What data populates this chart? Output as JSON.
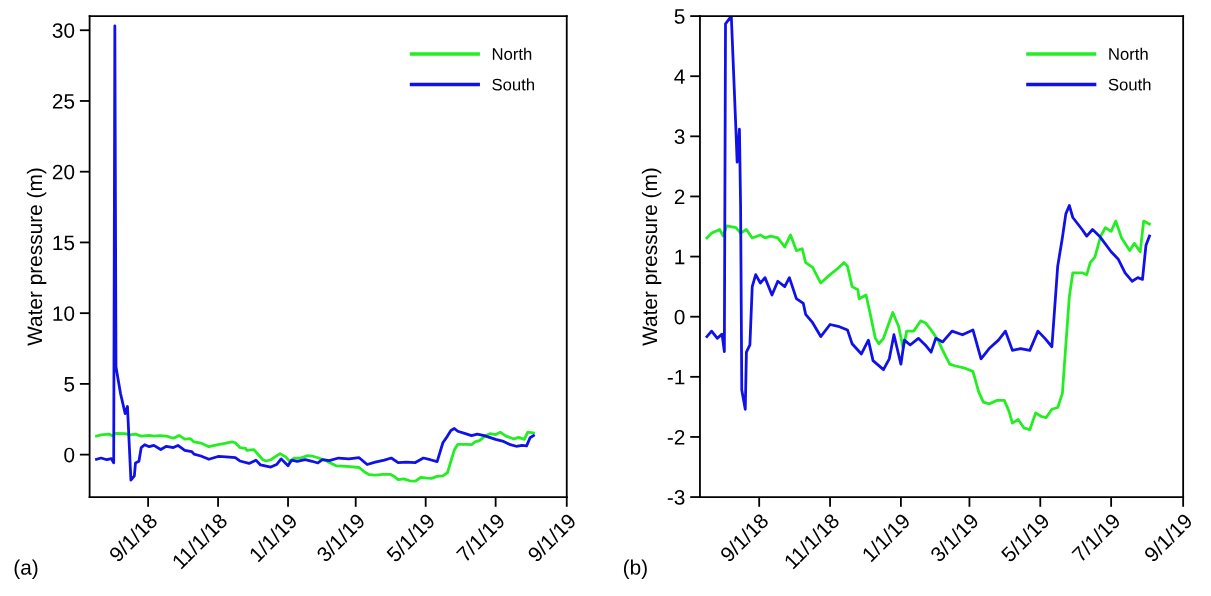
{
  "chart_data": [
    {
      "type": "line",
      "ylabel": "Water pressure (m)",
      "annotations": [
        "(a)"
      ],
      "legend": "top right",
      "xlim": [
        "2018-07-12",
        "2019-09-01"
      ],
      "xticks": [
        {
          "value": "2018-09-01",
          "label": "9/1/18"
        },
        {
          "value": "2018-11-01",
          "label": "11/1/18"
        },
        {
          "value": "2019-01-01",
          "label": "1/1/19"
        },
        {
          "value": "2019-03-01",
          "label": "3/1/19"
        },
        {
          "value": "2019-05-01",
          "label": "5/1/19"
        },
        {
          "value": "2019-07-01",
          "label": "7/1/19"
        },
        {
          "value": "2019-09-01",
          "label": "9/1/19"
        }
      ],
      "ylim": [
        -3,
        31
      ],
      "yticks": [
        0,
        5,
        10,
        15,
        20,
        25,
        30
      ],
      "series": [
        {
          "name": "North",
          "color": "#22ee22",
          "x": [
            "2018-07-18",
            "2018-07-22",
            "2018-07-29",
            "2018-08-01",
            "2018-08-04",
            "2018-08-12",
            "2018-08-16",
            "2018-08-21",
            "2018-08-26",
            "2018-09-02",
            "2018-09-06",
            "2018-09-11",
            "2018-09-17",
            "2018-09-23",
            "2018-09-28",
            "2018-10-03",
            "2018-10-08",
            "2018-10-11",
            "2018-10-17",
            "2018-10-24",
            "2018-11-01",
            "2018-11-07",
            "2018-11-13",
            "2018-11-16",
            "2018-11-20",
            "2018-11-25",
            "2018-11-26",
            "2018-12-02",
            "2018-12-05",
            "2018-12-10",
            "2018-12-13",
            "2018-12-17",
            "2018-12-25",
            "2018-12-30",
            "2019-01-03",
            "2019-01-06",
            "2019-01-12",
            "2019-01-18",
            "2019-01-22",
            "2019-01-27",
            "2019-02-02",
            "2019-02-06",
            "2019-02-12",
            "2019-02-17",
            "2019-02-24",
            "2019-03-04",
            "2019-03-09",
            "2019-03-13",
            "2019-03-18",
            "2019-03-25",
            "2019-03-31",
            "2019-04-04",
            "2019-04-07",
            "2019-04-12",
            "2019-04-17",
            "2019-04-22",
            "2019-04-27",
            "2019-05-02",
            "2019-05-06",
            "2019-05-11",
            "2019-05-16",
            "2019-05-20",
            "2019-05-23",
            "2019-05-26",
            "2019-05-29",
            "2019-06-06",
            "2019-06-10",
            "2019-06-13",
            "2019-06-17",
            "2019-06-22",
            "2019-06-26",
            "2019-07-01",
            "2019-07-05",
            "2019-07-10",
            "2019-07-17",
            "2019-07-21",
            "2019-07-26",
            "2019-07-29",
            "2019-08-03"
          ],
          "values": [
            1.31,
            1.39,
            1.45,
            1.34,
            1.51,
            1.48,
            1.39,
            1.45,
            1.31,
            1.36,
            1.31,
            1.34,
            1.31,
            1.16,
            1.36,
            1.1,
            1.13,
            0.9,
            0.82,
            0.56,
            0.7,
            0.79,
            0.9,
            0.84,
            0.5,
            0.45,
            0.3,
            0.36,
            0.1,
            -0.36,
            -0.45,
            -0.36,
            0.07,
            -0.16,
            -0.53,
            -0.24,
            -0.24,
            -0.07,
            -0.1,
            -0.22,
            -0.39,
            -0.56,
            -0.79,
            -0.82,
            -0.85,
            -0.91,
            -1.25,
            -1.42,
            -1.45,
            -1.39,
            -1.39,
            -1.57,
            -1.77,
            -1.71,
            -1.85,
            -1.88,
            -1.6,
            -1.66,
            -1.68,
            -1.54,
            -1.51,
            -1.28,
            -0.47,
            0.33,
            0.73,
            0.73,
            0.7,
            0.9,
            0.99,
            1.34,
            1.48,
            1.42,
            1.59,
            1.31,
            1.1,
            1.22,
            1.08,
            1.59,
            1.54
          ]
        },
        {
          "name": "South",
          "color": "#1010e8",
          "x": [
            "2018-07-18",
            "2018-07-22",
            "2018-07-27",
            "2018-07-31",
            "2018-08-02",
            "2018-08-03",
            "2018-08-04",
            "2018-08-08",
            "2018-08-12",
            "2018-08-14",
            "2018-08-17",
            "2018-08-20",
            "2018-08-21",
            "2018-08-24",
            "2018-08-26",
            "2018-08-29",
            "2018-09-02",
            "2018-09-06",
            "2018-09-12",
            "2018-09-17",
            "2018-09-23",
            "2018-09-27",
            "2018-10-03",
            "2018-10-09",
            "2018-10-11",
            "2018-10-17",
            "2018-10-24",
            "2018-11-01",
            "2018-11-08",
            "2018-11-16",
            "2018-11-20",
            "2018-11-28",
            "2018-12-04",
            "2018-12-08",
            "2018-12-17",
            "2018-12-22",
            "2018-12-26",
            "2019-01-01",
            "2019-01-04",
            "2019-01-09",
            "2019-01-16",
            "2019-01-22",
            "2019-01-27",
            "2019-01-31",
            "2019-02-06",
            "2019-02-14",
            "2019-02-23",
            "2019-03-04",
            "2019-03-11",
            "2019-03-18",
            "2019-03-26",
            "2019-04-01",
            "2019-04-07",
            "2019-04-14",
            "2019-04-22",
            "2019-04-29",
            "2019-05-05",
            "2019-05-11",
            "2019-05-16",
            "2019-05-20",
            "2019-05-23",
            "2019-05-26",
            "2019-05-29",
            "2019-06-06",
            "2019-06-10",
            "2019-06-15",
            "2019-06-21",
            "2019-07-01",
            "2019-07-07",
            "2019-07-13",
            "2019-07-19",
            "2019-07-24",
            "2019-07-28",
            "2019-07-31",
            "2019-08-03"
          ],
          "values": [
            -0.33,
            -0.24,
            -0.36,
            -0.29,
            -0.58,
            30.3,
            6.2,
            4.3,
            2.9,
            3.4,
            -1.8,
            -1.5,
            -0.59,
            -0.47,
            0.5,
            0.7,
            0.56,
            0.65,
            0.36,
            0.59,
            0.5,
            0.65,
            0.3,
            0.22,
            0.04,
            -0.1,
            -0.33,
            -0.13,
            -0.16,
            -0.22,
            -0.45,
            -0.62,
            -0.39,
            -0.73,
            -0.88,
            -0.7,
            -0.3,
            -0.79,
            -0.39,
            -0.47,
            -0.36,
            -0.47,
            -0.59,
            -0.36,
            -0.42,
            -0.24,
            -0.3,
            -0.22,
            -0.7,
            -0.53,
            -0.39,
            -0.24,
            -0.56,
            -0.53,
            -0.56,
            -0.24,
            -0.36,
            -0.5,
            0.84,
            1.31,
            1.71,
            1.85,
            1.65,
            1.45,
            1.34,
            1.45,
            1.34,
            1.08,
            0.96,
            0.73,
            0.59,
            0.65,
            0.62,
            1.19,
            1.34
          ]
        }
      ]
    },
    {
      "type": "line",
      "ylabel": "Water pressure (m)",
      "annotations": [
        "(b)"
      ],
      "legend": "top right",
      "xlim": [
        "2018-07-12",
        "2019-09-01"
      ],
      "xticks": [
        {
          "value": "2018-09-01",
          "label": "9/1/18"
        },
        {
          "value": "2018-11-01",
          "label": "11/1/18"
        },
        {
          "value": "2019-01-01",
          "label": "1/1/19"
        },
        {
          "value": "2019-03-01",
          "label": "3/1/19"
        },
        {
          "value": "2019-05-01",
          "label": "5/1/19"
        },
        {
          "value": "2019-07-01",
          "label": "7/1/19"
        },
        {
          "value": "2019-09-01",
          "label": "9/1/19"
        }
      ],
      "ylim": [
        -3,
        5
      ],
      "yticks": [
        -3,
        -2,
        -1,
        0,
        1,
        2,
        3,
        4,
        5
      ],
      "series": [
        {
          "name": "North",
          "color": "#22ee22",
          "x": [
            "2018-07-18",
            "2018-07-22",
            "2018-07-29",
            "2018-08-01",
            "2018-08-04",
            "2018-08-12",
            "2018-08-16",
            "2018-08-21",
            "2018-08-26",
            "2018-09-02",
            "2018-09-06",
            "2018-09-11",
            "2018-09-17",
            "2018-09-23",
            "2018-09-28",
            "2018-10-03",
            "2018-10-08",
            "2018-10-11",
            "2018-10-17",
            "2018-10-24",
            "2018-11-01",
            "2018-11-07",
            "2018-11-13",
            "2018-11-16",
            "2018-11-20",
            "2018-11-25",
            "2018-11-26",
            "2018-12-02",
            "2018-12-05",
            "2018-12-10",
            "2018-12-13",
            "2018-12-17",
            "2018-12-25",
            "2018-12-30",
            "2019-01-03",
            "2019-01-06",
            "2019-01-12",
            "2019-01-18",
            "2019-01-22",
            "2019-01-27",
            "2019-02-02",
            "2019-02-06",
            "2019-02-12",
            "2019-02-17",
            "2019-02-24",
            "2019-03-04",
            "2019-03-09",
            "2019-03-13",
            "2019-03-18",
            "2019-03-25",
            "2019-03-31",
            "2019-04-04",
            "2019-04-07",
            "2019-04-12",
            "2019-04-17",
            "2019-04-22",
            "2019-04-27",
            "2019-05-02",
            "2019-05-06",
            "2019-05-11",
            "2019-05-16",
            "2019-05-20",
            "2019-05-23",
            "2019-05-26",
            "2019-05-29",
            "2019-06-06",
            "2019-06-10",
            "2019-06-13",
            "2019-06-17",
            "2019-06-22",
            "2019-06-26",
            "2019-07-01",
            "2019-07-05",
            "2019-07-10",
            "2019-07-17",
            "2019-07-21",
            "2019-07-26",
            "2019-07-29",
            "2019-08-03"
          ],
          "values": [
            1.31,
            1.39,
            1.45,
            1.34,
            1.51,
            1.48,
            1.39,
            1.45,
            1.31,
            1.36,
            1.31,
            1.34,
            1.31,
            1.16,
            1.36,
            1.1,
            1.13,
            0.9,
            0.82,
            0.56,
            0.7,
            0.79,
            0.9,
            0.84,
            0.5,
            0.45,
            0.3,
            0.36,
            0.1,
            -0.36,
            -0.45,
            -0.36,
            0.07,
            -0.16,
            -0.53,
            -0.24,
            -0.24,
            -0.07,
            -0.1,
            -0.22,
            -0.39,
            -0.56,
            -0.79,
            -0.82,
            -0.85,
            -0.91,
            -1.25,
            -1.42,
            -1.45,
            -1.39,
            -1.39,
            -1.57,
            -1.77,
            -1.71,
            -1.85,
            -1.88,
            -1.6,
            -1.66,
            -1.68,
            -1.54,
            -1.51,
            -1.28,
            -0.47,
            0.33,
            0.73,
            0.73,
            0.7,
            0.9,
            0.99,
            1.34,
            1.48,
            1.42,
            1.59,
            1.31,
            1.1,
            1.22,
            1.08,
            1.59,
            1.54
          ]
        },
        {
          "name": "South",
          "color": "#1010e8",
          "x": [
            "2018-07-18",
            "2018-07-22",
            "2018-07-27",
            "2018-07-31",
            "2018-08-02",
            "2018-08-03",
            "2018-08-08",
            "2018-08-12",
            "2018-08-13",
            "2018-08-15",
            "2018-08-16",
            "2018-08-17",
            "2018-08-20",
            "2018-08-21",
            "2018-08-24",
            "2018-08-26",
            "2018-08-29",
            "2018-09-02",
            "2018-09-06",
            "2018-09-12",
            "2018-09-17",
            "2018-09-23",
            "2018-09-27",
            "2018-10-03",
            "2018-10-09",
            "2018-10-11",
            "2018-10-17",
            "2018-10-24",
            "2018-11-01",
            "2018-11-08",
            "2018-11-16",
            "2018-11-20",
            "2018-11-28",
            "2018-12-04",
            "2018-12-08",
            "2018-12-17",
            "2018-12-22",
            "2018-12-26",
            "2019-01-01",
            "2019-01-04",
            "2019-01-09",
            "2019-01-16",
            "2019-01-22",
            "2019-01-27",
            "2019-01-31",
            "2019-02-06",
            "2019-02-14",
            "2019-02-23",
            "2019-03-04",
            "2019-03-11",
            "2019-03-18",
            "2019-03-26",
            "2019-04-01",
            "2019-04-07",
            "2019-04-14",
            "2019-04-22",
            "2019-04-29",
            "2019-05-05",
            "2019-05-11",
            "2019-05-16",
            "2019-05-20",
            "2019-05-23",
            "2019-05-26",
            "2019-05-29",
            "2019-06-06",
            "2019-06-10",
            "2019-06-15",
            "2019-06-21",
            "2019-07-01",
            "2019-07-07",
            "2019-07-13",
            "2019-07-19",
            "2019-07-24",
            "2019-07-28",
            "2019-07-31",
            "2019-08-03"
          ],
          "values": [
            -0.33,
            -0.24,
            -0.36,
            -0.29,
            -0.58,
            4.87,
            5.0,
            3.09,
            2.57,
            3.12,
            1.82,
            -1.22,
            -1.54,
            -0.59,
            -0.47,
            0.5,
            0.7,
            0.56,
            0.65,
            0.36,
            0.59,
            0.5,
            0.65,
            0.3,
            0.22,
            0.04,
            -0.1,
            -0.33,
            -0.13,
            -0.16,
            -0.22,
            -0.45,
            -0.62,
            -0.39,
            -0.73,
            -0.88,
            -0.7,
            -0.3,
            -0.79,
            -0.39,
            -0.47,
            -0.36,
            -0.47,
            -0.59,
            -0.36,
            -0.42,
            -0.24,
            -0.3,
            -0.22,
            -0.7,
            -0.53,
            -0.39,
            -0.24,
            -0.56,
            -0.53,
            -0.56,
            -0.24,
            -0.36,
            -0.5,
            0.84,
            1.31,
            1.71,
            1.85,
            1.65,
            1.45,
            1.34,
            1.45,
            1.34,
            1.08,
            0.96,
            0.73,
            0.59,
            0.65,
            0.62,
            1.19,
            1.34
          ]
        }
      ]
    }
  ]
}
